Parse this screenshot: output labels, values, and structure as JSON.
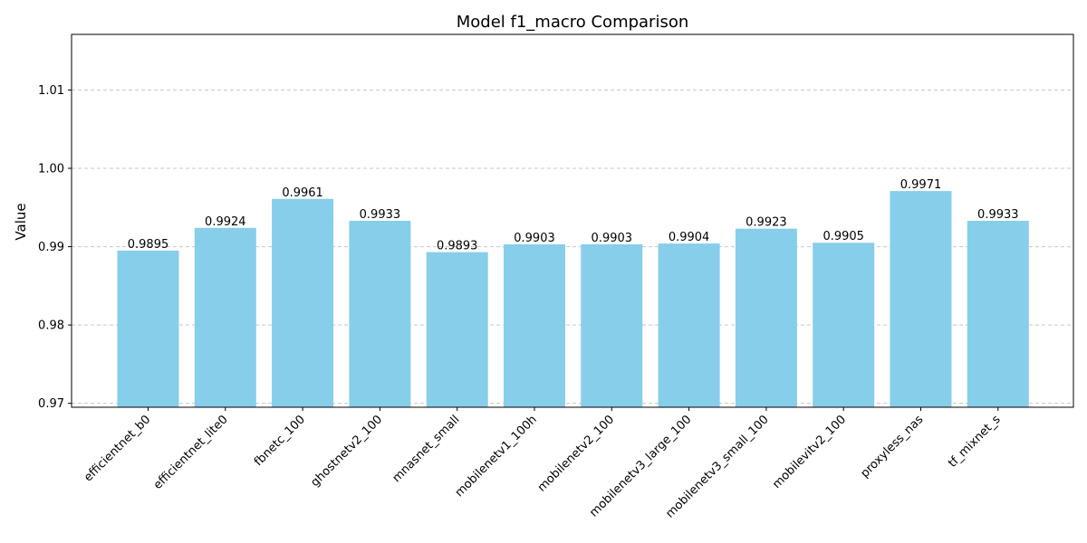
{
  "chart_data": {
    "type": "bar",
    "title": "Model f1_macro Comparison",
    "xlabel": "",
    "ylabel": "Value",
    "ylim": [
      0.9695,
      1.0171
    ],
    "yticks": [
      0.97,
      0.98,
      0.99,
      1.0,
      1.01
    ],
    "ytick_labels": [
      "0.97",
      "0.98",
      "0.99",
      "1.00",
      "1.01"
    ],
    "grid": "y-dashed",
    "bar_color": "#87ceeb",
    "categories": [
      "efficientnet_b0",
      "efficientnet_lite0",
      "fbnetc_100",
      "ghostnetv2_100",
      "mnasnet_small",
      "mobilenetv1_100h",
      "mobilenetv2_100",
      "mobilenetv3_large_100",
      "mobilenetv3_small_100",
      "mobilevitv2_100",
      "proxyless_nas",
      "tf_mixnet_s"
    ],
    "values": [
      0.9895,
      0.9924,
      0.9961,
      0.9933,
      0.9893,
      0.9903,
      0.9903,
      0.9904,
      0.9923,
      0.9905,
      0.9971,
      0.9933
    ],
    "value_labels": [
      "0.9895",
      "0.9924",
      "0.9961",
      "0.9933",
      "0.9893",
      "0.9903",
      "0.9903",
      "0.9904",
      "0.9923",
      "0.9905",
      "0.9971",
      "0.9933"
    ]
  }
}
